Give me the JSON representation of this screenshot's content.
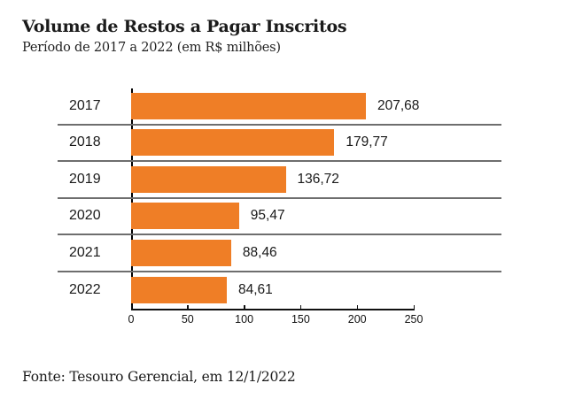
{
  "header": {
    "title": "Volume de Restos a Pagar Inscritos",
    "subtitle": "Período de 2017 a 2022 (em R$ milhões)"
  },
  "footer": {
    "source": "Fonte: Tesouro Gerencial, em 12/1/2022"
  },
  "colors": {
    "bar": "#ef7e26",
    "separator": "#6e6e6e",
    "axis": "#111111",
    "text": "#1a1a1a"
  },
  "chart_data": {
    "type": "bar",
    "orientation": "horizontal",
    "title": "Volume de Restos a Pagar Inscritos",
    "subtitle": "Período de 2017 a 2022 (em R$ milhões)",
    "categories": [
      "2017",
      "2018",
      "2019",
      "2020",
      "2021",
      "2022"
    ],
    "values": [
      207.68,
      179.77,
      136.72,
      95.47,
      88.46,
      84.61
    ],
    "value_labels": [
      "207,68",
      "179,77",
      "136,72",
      "95,47",
      "88,46",
      "84,61"
    ],
    "xlim": [
      0,
      250
    ],
    "xticks": [
      0,
      50,
      100,
      150,
      200,
      250
    ],
    "xtick_labels": [
      "0",
      "50",
      "100",
      "150",
      "200",
      "250"
    ],
    "grid": "horizontal-row-separators",
    "legend": "none",
    "bar_color": "#ef7e26",
    "source": "Fonte: Tesouro Gerencial, em 12/1/2022"
  }
}
